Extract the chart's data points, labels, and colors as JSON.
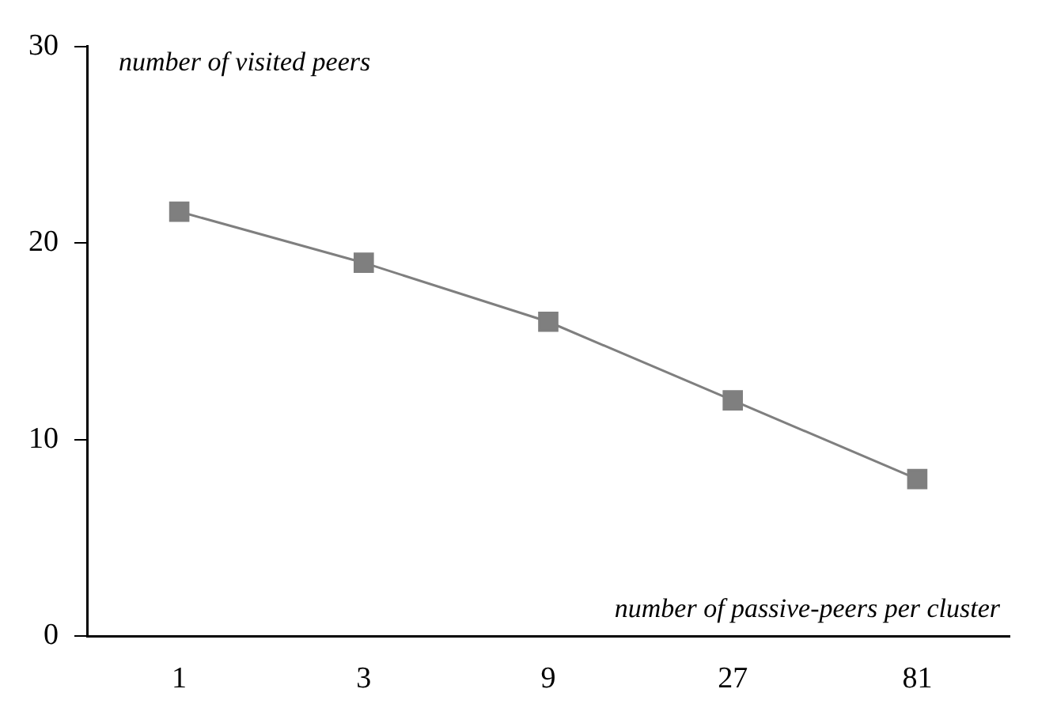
{
  "chart_data": {
    "type": "line",
    "xlabel": "number of passive-peers per cluster",
    "ylabel": "number of visited peers",
    "categories": [
      "1",
      "3",
      "9",
      "27",
      "81"
    ],
    "series": [
      {
        "color": "#7f7f7f",
        "values": [
          21.6,
          19,
          16,
          12,
          8
        ]
      }
    ],
    "ylim": [
      0,
      30
    ],
    "yticks": [
      0,
      10,
      20,
      30
    ],
    "grid": false,
    "legend": false,
    "marker": "square",
    "line_style": "solid"
  }
}
